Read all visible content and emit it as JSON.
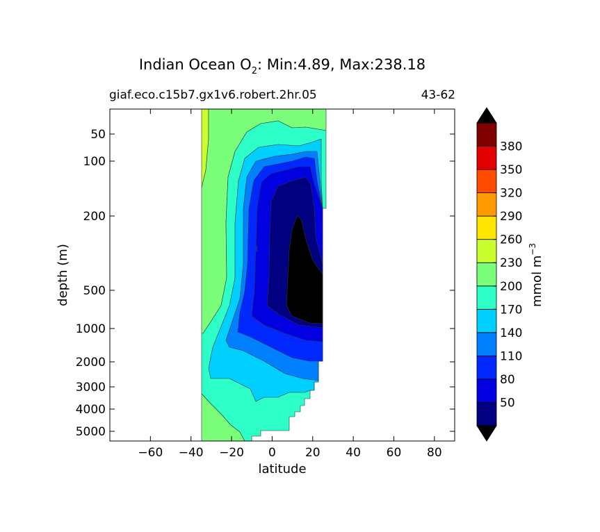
{
  "chart_data": {
    "type": "heatmap",
    "title": {
      "prefix": "Indian Ocean O",
      "sub": "2",
      "suffix": ": Min:4.89, Max:238.18"
    },
    "subtitle_left": "giaf.eco.c15b7.gx1v6.robert.2hr.05",
    "subtitle_right": "43-62",
    "xlabel": "latitude",
    "ylabel": "depth (m)",
    "xlim": [
      -80,
      90
    ],
    "x_ticks": [
      -60,
      -40,
      -20,
      0,
      20,
      40,
      60,
      80
    ],
    "y_ticks": [
      50,
      100,
      200,
      500,
      1000,
      2000,
      3000,
      4000,
      5000
    ],
    "colorbar": {
      "label": "mmol m",
      "label_exp": "−3",
      "levels": [
        20,
        50,
        80,
        110,
        140,
        170,
        200,
        230,
        260,
        290,
        320,
        350,
        380,
        410
      ],
      "tick_labels": [
        50,
        80,
        110,
        140,
        170,
        200,
        230,
        260,
        290,
        320,
        350,
        380
      ],
      "colors": [
        "#000080",
        "#0000e0",
        "#0028ff",
        "#0080ff",
        "#00d0ff",
        "#2effc9",
        "#7bff7b",
        "#c9ff2e",
        "#ffe500",
        "#ff9a00",
        "#ff4a00",
        "#e30000",
        "#800000"
      ],
      "under_color": "#000000",
      "over_color": "#000000"
    },
    "fields": {
      "above_230": "#c9ff2e",
      "200_230": "#7bff7b",
      "170_200": "#2effc9",
      "140_170": "#00d0ff",
      "110_140": "#0080ff",
      "80_110": "#0028ff",
      "50_80": "#0000e0",
      "20_50": "#000080",
      "below_20": "#000000"
    }
  }
}
